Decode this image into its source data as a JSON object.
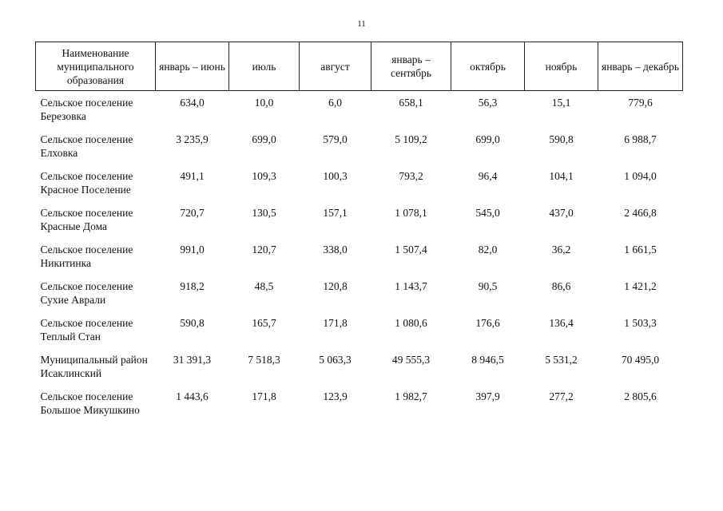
{
  "page_number": "11",
  "table": {
    "headers": [
      "Наименование муниципального образования",
      "январь – июнь",
      "июль",
      "август",
      "январь – сентябрь",
      "октябрь",
      "ноябрь",
      "январь – декабрь"
    ],
    "rows": [
      [
        "Сельское поселение Березовка",
        "634,0",
        "10,0",
        "6,0",
        "658,1",
        "56,3",
        "15,1",
        "779,6"
      ],
      [
        "Сельское поселение Елховка",
        "3 235,9",
        "699,0",
        "579,0",
        "5 109,2",
        "699,0",
        "590,8",
        "6 988,7"
      ],
      [
        "Сельское поселение Красное Поселение",
        "491,1",
        "109,3",
        "100,3",
        "793,2",
        "96,4",
        "104,1",
        "1 094,0"
      ],
      [
        "Сельское поселение Красные Дома",
        "720,7",
        "130,5",
        "157,1",
        "1 078,1",
        "545,0",
        "437,0",
        "2 466,8"
      ],
      [
        "Сельское поселение Никитинка",
        "991,0",
        "120,7",
        "338,0",
        "1 507,4",
        "82,0",
        "36,2",
        "1 661,5"
      ],
      [
        "Сельское поселение Сухие Аврали",
        "918,2",
        "48,5",
        "120,8",
        "1 143,7",
        "90,5",
        "86,6",
        "1 421,2"
      ],
      [
        "Сельское поселение Теплый Стан",
        "590,8",
        "165,7",
        "171,8",
        "1 080,6",
        "176,6",
        "136,4",
        "1 503,3"
      ],
      [
        "Муниципальный район Исаклинский",
        "31 391,3",
        "7 518,3",
        "5 063,3",
        "49 555,3",
        "8 946,5",
        "5 531,2",
        "70 495,0"
      ],
      [
        "Сельское поселение Большое Микушкино",
        "1 443,6",
        "171,8",
        "123,9",
        "1 982,7",
        "397,9",
        "277,2",
        "2 805,6"
      ]
    ]
  }
}
